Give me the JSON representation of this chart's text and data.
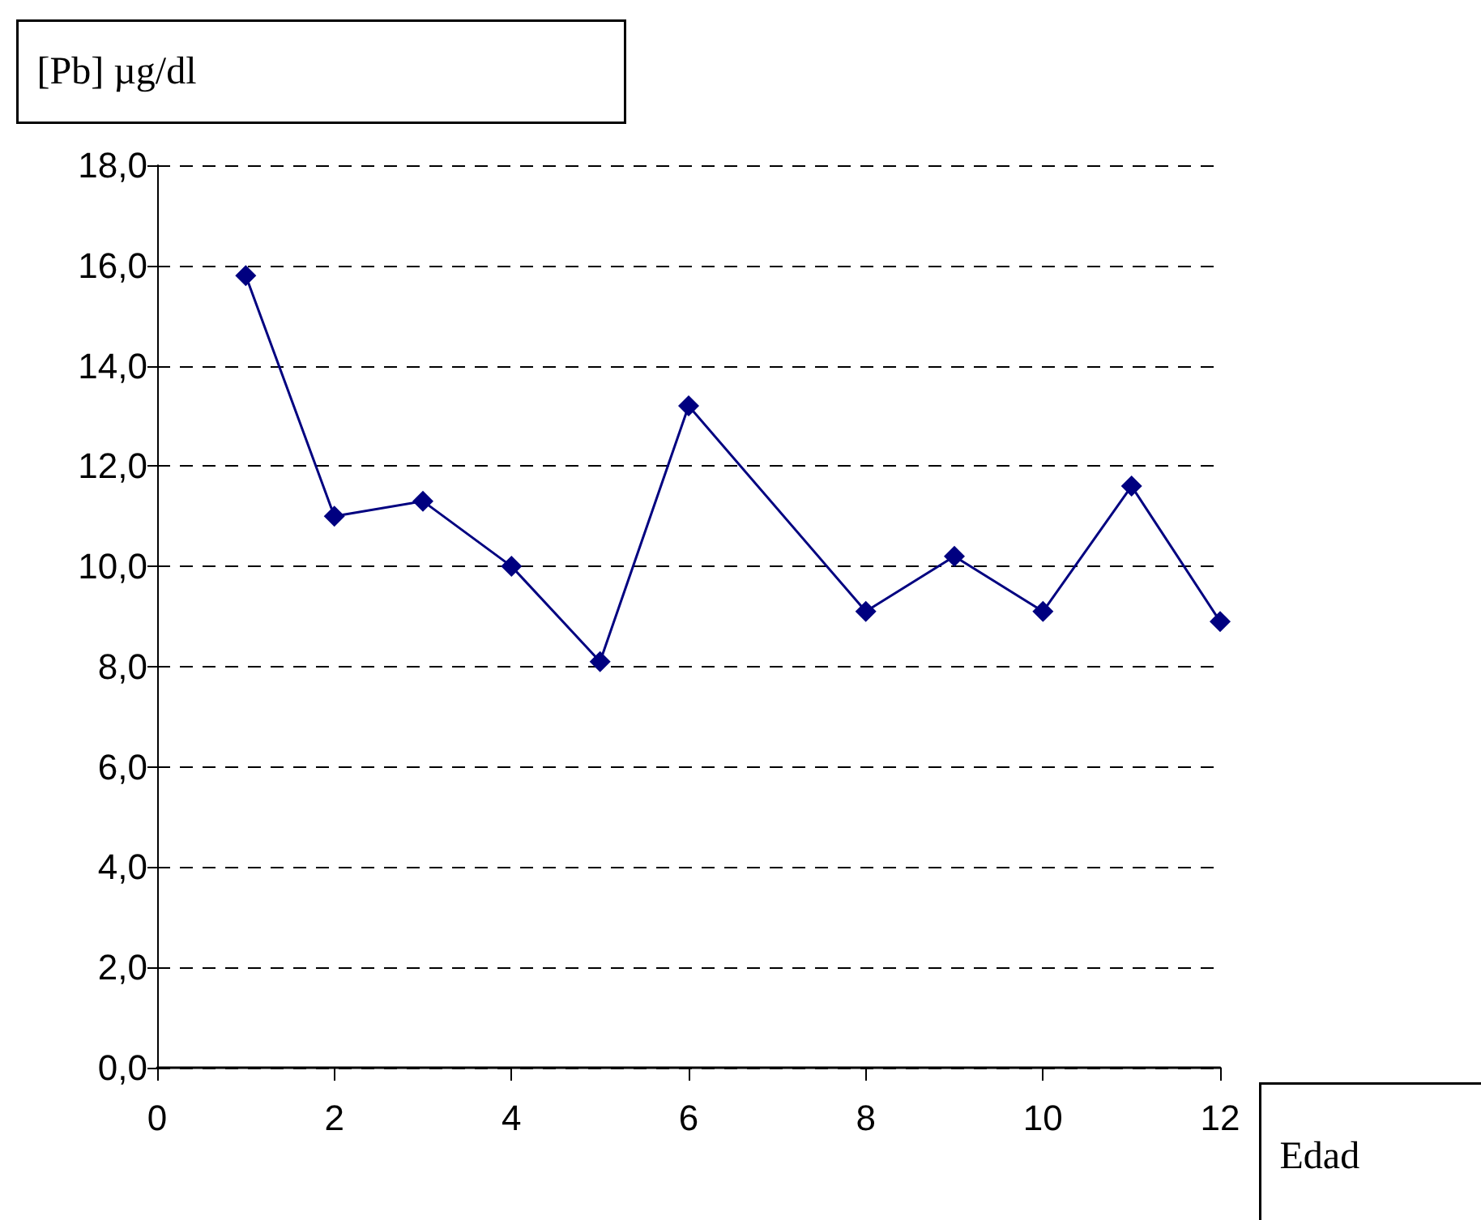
{
  "chart_data": {
    "type": "line",
    "xlabel": "Edad",
    "ylabel": "[Pb] µg/dl",
    "x": [
      1,
      2,
      3,
      4,
      5,
      6,
      8,
      9,
      10,
      11,
      12
    ],
    "series": [
      {
        "color": "#000080",
        "values": [
          15.8,
          11.0,
          11.3,
          10.0,
          8.1,
          13.2,
          9.1,
          10.2,
          9.1,
          11.6,
          8.9
        ]
      }
    ],
    "xlim": [
      0,
      12
    ],
    "xticks": [
      0,
      2,
      4,
      6,
      8,
      10,
      12
    ],
    "ylim": [
      0,
      18
    ],
    "yticks": [
      {
        "value": 0,
        "label": "0,0"
      },
      {
        "value": 2,
        "label": "2,0"
      },
      {
        "value": 4,
        "label": "4,0"
      },
      {
        "value": 6,
        "label": "6,0"
      },
      {
        "value": 8,
        "label": "8,0"
      },
      {
        "value": 10,
        "label": "10,0"
      },
      {
        "value": 12,
        "label": "12,0"
      },
      {
        "value": 14,
        "label": "14,0"
      },
      {
        "value": 16,
        "label": "16,0"
      },
      {
        "value": 18,
        "label": "18,0"
      }
    ],
    "grid": "y",
    "marker": "diamond",
    "line_style": "solid"
  }
}
